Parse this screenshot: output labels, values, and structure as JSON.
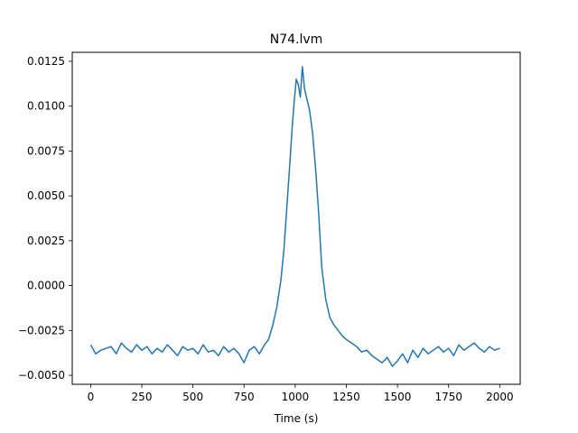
{
  "chart_data": {
    "type": "line",
    "title": "N74.lvm",
    "xlabel": "Time (s)",
    "ylabel": "",
    "xlim": [
      -90,
      2100
    ],
    "ylim": [
      -0.0055,
      0.013
    ],
    "xticks": [
      0,
      250,
      500,
      750,
      1000,
      1250,
      1500,
      1750,
      2000
    ],
    "yticks": [
      -0.005,
      -0.0025,
      0.0,
      0.0025,
      0.005,
      0.0075,
      0.01,
      0.0125
    ],
    "xtick_labels": [
      "0",
      "250",
      "500",
      "750",
      "1000",
      "1250",
      "1500",
      "1750",
      "2000"
    ],
    "ytick_labels": [
      "−0.0050",
      "−0.0025",
      "0.0000",
      "0.0025",
      "0.0050",
      "0.0075",
      "0.0100",
      "0.0125"
    ],
    "grid": false,
    "legend": "none",
    "line_color": "#1f77b4",
    "series": [
      {
        "x": [
          0,
          25,
          50,
          75,
          100,
          125,
          150,
          175,
          200,
          225,
          250,
          275,
          300,
          325,
          350,
          375,
          400,
          425,
          450,
          475,
          500,
          525,
          550,
          575,
          600,
          625,
          650,
          675,
          700,
          725,
          750,
          775,
          800,
          825,
          850,
          870,
          890,
          910,
          930,
          945,
          960,
          975,
          985,
          995,
          1005,
          1015,
          1025,
          1035,
          1045,
          1055,
          1070,
          1085,
          1100,
          1115,
          1130,
          1150,
          1170,
          1190,
          1210,
          1230,
          1250,
          1275,
          1300,
          1325,
          1350,
          1375,
          1400,
          1425,
          1450,
          1475,
          1500,
          1525,
          1550,
          1575,
          1600,
          1625,
          1650,
          1675,
          1700,
          1725,
          1750,
          1775,
          1800,
          1825,
          1850,
          1875,
          1900,
          1925,
          1950,
          1975,
          2000
        ],
        "y": [
          -0.0033,
          -0.0038,
          -0.0036,
          -0.0035,
          -0.0034,
          -0.0038,
          -0.0032,
          -0.0035,
          -0.0037,
          -0.0033,
          -0.0036,
          -0.0034,
          -0.0038,
          -0.0035,
          -0.0037,
          -0.0033,
          -0.0036,
          -0.0039,
          -0.0034,
          -0.0036,
          -0.0035,
          -0.0038,
          -0.0033,
          -0.0037,
          -0.0036,
          -0.0039,
          -0.0034,
          -0.0037,
          -0.0035,
          -0.0038,
          -0.0043,
          -0.0036,
          -0.0034,
          -0.0038,
          -0.0033,
          -0.003,
          -0.0022,
          -0.0012,
          0.0003,
          0.002,
          0.0045,
          0.007,
          0.0088,
          0.0102,
          0.0115,
          0.0112,
          0.0105,
          0.0122,
          0.011,
          0.0105,
          0.0098,
          0.0085,
          0.0065,
          0.004,
          0.001,
          -0.0008,
          -0.0018,
          -0.0022,
          -0.0025,
          -0.0028,
          -0.003,
          -0.0032,
          -0.0034,
          -0.0037,
          -0.0036,
          -0.0039,
          -0.0041,
          -0.0043,
          -0.004,
          -0.0045,
          -0.0042,
          -0.0038,
          -0.0043,
          -0.0036,
          -0.004,
          -0.0035,
          -0.0038,
          -0.0036,
          -0.0034,
          -0.0037,
          -0.0035,
          -0.0039,
          -0.0033,
          -0.0036,
          -0.0034,
          -0.0032,
          -0.0035,
          -0.0037,
          -0.0034,
          -0.0036,
          -0.0035
        ]
      }
    ]
  }
}
